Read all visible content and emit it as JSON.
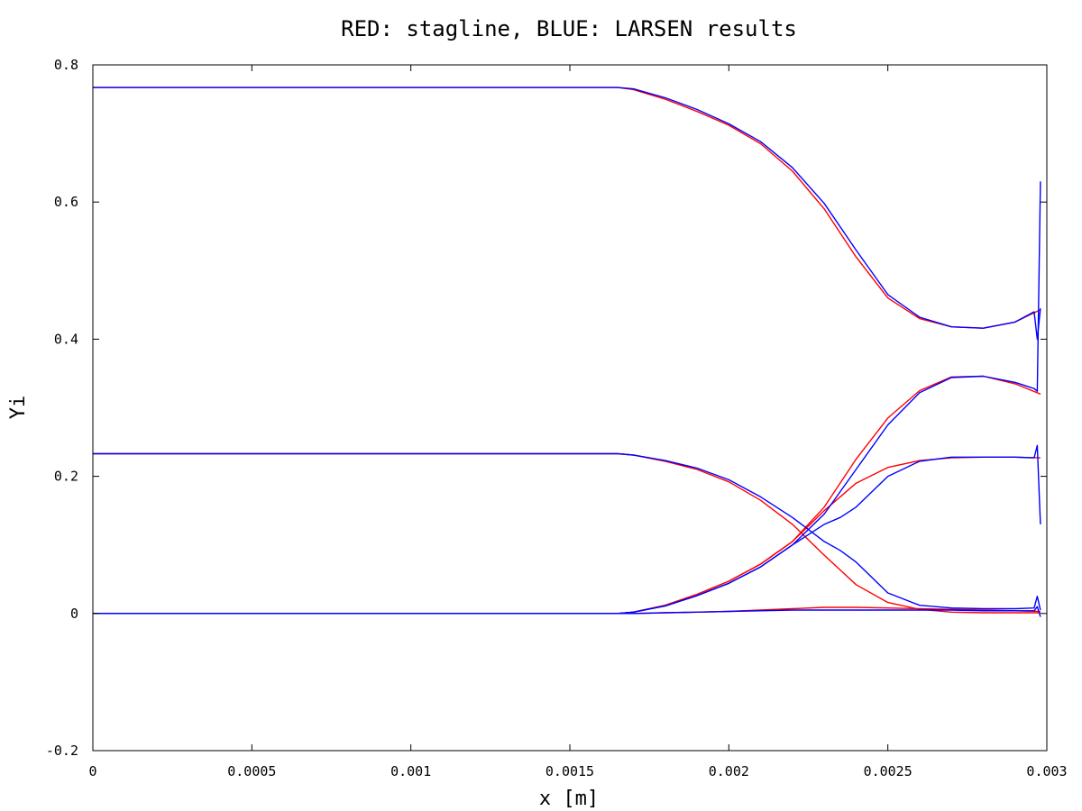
{
  "chart_data": {
    "type": "line",
    "title": "RED: stagline, BLUE: LARSEN results",
    "xlabel": "x [m]",
    "ylabel": "Yi",
    "xlim": [
      0,
      0.003
    ],
    "ylim": [
      -0.2,
      0.8
    ],
    "x_ticks": [
      0,
      0.0005,
      0.001,
      0.0015,
      0.002,
      0.0025,
      0.003
    ],
    "x_tick_labels": [
      "0",
      "0.0005",
      "0.001",
      "0.0015",
      "0.002",
      "0.0025",
      "0.003"
    ],
    "y_ticks": [
      -0.2,
      0,
      0.2,
      0.4,
      0.6,
      0.8
    ],
    "y_tick_labels": [
      "-0.2",
      "0",
      "0.2",
      "0.4",
      "0.6",
      "0.8"
    ],
    "grid": false,
    "legend": "none",
    "colors": {
      "stagline": "#ff0000",
      "larsen": "#0000ff"
    },
    "series": [
      {
        "color": "#ff0000",
        "x": [
          0,
          0.0016,
          0.00165,
          0.0017,
          0.0018,
          0.0019,
          0.002,
          0.0021,
          0.0022,
          0.0023,
          0.0024,
          0.0025,
          0.0026,
          0.0027,
          0.0028,
          0.0029,
          0.00298
        ],
        "y": [
          0.767,
          0.767,
          0.767,
          0.764,
          0.75,
          0.732,
          0.712,
          0.685,
          0.645,
          0.59,
          0.52,
          0.46,
          0.43,
          0.418,
          0.416,
          0.425,
          0.443
        ]
      },
      {
        "color": "#ff0000",
        "x": [
          0,
          0.0016,
          0.00165,
          0.0017,
          0.0018,
          0.0019,
          0.002,
          0.0021,
          0.0022,
          0.0023,
          0.0024,
          0.0025,
          0.0026,
          0.0027,
          0.0028,
          0.0029,
          0.00298
        ],
        "y": [
          0.233,
          0.233,
          0.233,
          0.231,
          0.222,
          0.21,
          0.192,
          0.165,
          0.13,
          0.085,
          0.042,
          0.016,
          0.006,
          0.002,
          0.001,
          0.001,
          0.001
        ]
      },
      {
        "color": "#ff0000",
        "x": [
          0,
          0.0016,
          0.00165,
          0.0017,
          0.0018,
          0.0019,
          0.002,
          0.0021,
          0.0022,
          0.0023,
          0.0024,
          0.0025,
          0.0026,
          0.0027,
          0.0028,
          0.0029,
          0.00298
        ],
        "y": [
          0,
          0,
          0,
          0.002,
          0.012,
          0.028,
          0.047,
          0.072,
          0.105,
          0.155,
          0.225,
          0.285,
          0.325,
          0.345,
          0.346,
          0.335,
          0.32
        ]
      },
      {
        "color": "#ff0000",
        "x": [
          0,
          0.0016,
          0.00165,
          0.0017,
          0.0018,
          0.0019,
          0.002,
          0.0021,
          0.0022,
          0.0023,
          0.0024,
          0.0025,
          0.0026,
          0.0027,
          0.0028,
          0.0029,
          0.00298
        ],
        "y": [
          0,
          0,
          0,
          0.002,
          0.012,
          0.028,
          0.047,
          0.072,
          0.105,
          0.15,
          0.19,
          0.213,
          0.223,
          0.227,
          0.228,
          0.228,
          0.227
        ]
      },
      {
        "color": "#ff0000",
        "x": [
          0,
          0.0016,
          0.0017,
          0.0018,
          0.0019,
          0.002,
          0.0021,
          0.0022,
          0.0023,
          0.0024,
          0.0025,
          0.0026,
          0.0027,
          0.0028,
          0.0029,
          0.00298
        ],
        "y": [
          0,
          0,
          0,
          0.001,
          0.002,
          0.003,
          0.005,
          0.007,
          0.009,
          0.009,
          0.008,
          0.007,
          0.006,
          0.005,
          0.004,
          0.003
        ]
      },
      {
        "color": "#0000ff",
        "x": [
          0,
          0.0016,
          0.00165,
          0.0017,
          0.0018,
          0.0019,
          0.002,
          0.0021,
          0.0022,
          0.0023,
          0.0024,
          0.0025,
          0.0026,
          0.0027,
          0.0028,
          0.0029,
          0.00296,
          0.00297,
          0.00298
        ],
        "y": [
          0.767,
          0.767,
          0.767,
          0.765,
          0.752,
          0.735,
          0.714,
          0.688,
          0.65,
          0.598,
          0.53,
          0.465,
          0.432,
          0.418,
          0.416,
          0.425,
          0.44,
          0.4,
          0.445
        ]
      },
      {
        "color": "#0000ff",
        "x": [
          0,
          0.0016,
          0.00165,
          0.0017,
          0.0018,
          0.0019,
          0.002,
          0.0021,
          0.0022,
          0.0023,
          0.00235,
          0.0024,
          0.0025,
          0.0026,
          0.0027,
          0.0028,
          0.0029,
          0.00296,
          0.00297,
          0.00298
        ],
        "y": [
          0.233,
          0.233,
          0.233,
          0.231,
          0.223,
          0.212,
          0.195,
          0.17,
          0.14,
          0.105,
          0.092,
          0.075,
          0.03,
          0.012,
          0.008,
          0.007,
          0.007,
          0.008,
          0.025,
          0.005
        ]
      },
      {
        "color": "#0000ff",
        "x": [
          0,
          0.0016,
          0.00165,
          0.0017,
          0.0018,
          0.0019,
          0.002,
          0.0021,
          0.0022,
          0.0023,
          0.0024,
          0.0025,
          0.0026,
          0.0027,
          0.0028,
          0.0029,
          0.00296,
          0.00297,
          0.00298
        ],
        "y": [
          0,
          0,
          0,
          0.002,
          0.011,
          0.026,
          0.044,
          0.068,
          0.1,
          0.145,
          0.21,
          0.275,
          0.322,
          0.344,
          0.346,
          0.337,
          0.328,
          0.324,
          0.63
        ]
      },
      {
        "color": "#0000ff",
        "x": [
          0,
          0.0016,
          0.00165,
          0.0017,
          0.0018,
          0.0019,
          0.002,
          0.0021,
          0.0022,
          0.0023,
          0.00235,
          0.0024,
          0.0025,
          0.0026,
          0.0027,
          0.0028,
          0.0029,
          0.00296,
          0.00297,
          0.00298
        ],
        "y": [
          0,
          0,
          0,
          0.002,
          0.011,
          0.026,
          0.044,
          0.068,
          0.1,
          0.13,
          0.14,
          0.155,
          0.2,
          0.222,
          0.228,
          0.228,
          0.228,
          0.227,
          0.245,
          0.13
        ]
      },
      {
        "color": "#0000ff",
        "x": [
          0,
          0.0016,
          0.0017,
          0.0018,
          0.0019,
          0.002,
          0.0021,
          0.0022,
          0.0023,
          0.0024,
          0.0025,
          0.0026,
          0.0027,
          0.0028,
          0.0029,
          0.00296,
          0.00297,
          0.00298
        ],
        "y": [
          0,
          0,
          0,
          0.001,
          0.002,
          0.003,
          0.004,
          0.005,
          0.005,
          0.005,
          0.005,
          0.005,
          0.005,
          0.004,
          0.004,
          0.004,
          0.01,
          -0.005
        ]
      }
    ]
  }
}
